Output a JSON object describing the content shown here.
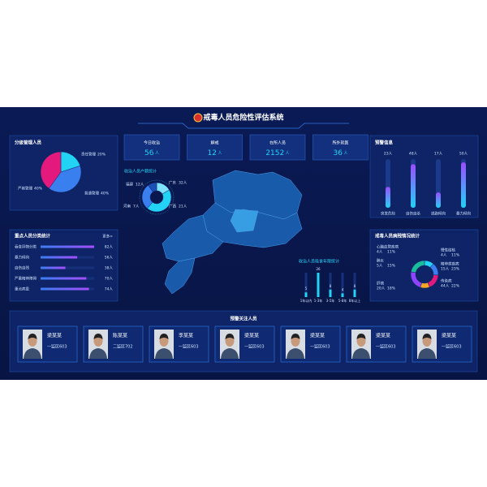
{
  "header": {
    "title": "戒毒人员危险性评估系统"
  },
  "grade_panel": {
    "title": "分级管理人员",
    "categories": [
      "责任管理",
      "普通管理",
      "严格管理"
    ],
    "values": [
      20,
      40,
      40
    ],
    "value_labels": [
      "20%",
      "40%",
      "40%"
    ],
    "colors": [
      "#22d3f5",
      "#3a7ff0",
      "#e3197e"
    ]
  },
  "key_panel": {
    "title": "重点人员分类统计",
    "more": "更多>",
    "categories": [
      "吞食异物分类",
      "暴力倾向",
      "自伤自残",
      "严重精神障碍",
      "重点病患"
    ],
    "values": [
      82,
      56,
      38,
      70,
      74
    ],
    "value_labels": [
      "82人",
      "56人",
      "38人",
      "70人",
      "74人"
    ]
  },
  "stats": [
    {
      "label": "今日收治",
      "value": 56,
      "unit": "人"
    },
    {
      "label": "解戒",
      "value": 12,
      "unit": "人"
    },
    {
      "label": "在所人员",
      "value": 2152,
      "unit": "人"
    },
    {
      "label": "所外就医",
      "value": 36,
      "unit": "人"
    }
  ],
  "origin_chart": {
    "title": "收治人员户籍统计",
    "categories": [
      "福建",
      "广东",
      "广西",
      "河南"
    ],
    "values": [
      12,
      32,
      21,
      7
    ],
    "value_labels": [
      "12人",
      "32人",
      "21人",
      "7人"
    ],
    "colors": [
      "#7fe3ff",
      "#22d3f5",
      "#3a7ff0",
      "#1c4fb8"
    ]
  },
  "duration_chart": {
    "title": "收治人员吸食年限统计",
    "categories": [
      "1年以内",
      "1-3年",
      "3-5年",
      "5-8年",
      "8年以上"
    ],
    "values": [
      5,
      26,
      8,
      4,
      8
    ]
  },
  "warning_panel": {
    "title": "预警信息",
    "categories": [
      "突发危险",
      "自伤自杀",
      "逃跑倾向",
      "暴力倾向"
    ],
    "values": [
      23,
      48,
      17,
      50
    ],
    "value_labels": [
      "23人",
      "48人",
      "17人",
      "50人"
    ]
  },
  "disease_panel": {
    "title": "戒毒人员病残情况统计",
    "colors": [
      "#22d3f5",
      "#3a7ff0",
      "#e3197e",
      "#f5a623",
      "#8e44ff",
      "#1abc9c"
    ],
    "items": [
      {
        "name": "心脑血管疾病",
        "count": "4人",
        "percent": 11,
        "percent_label": "11%"
      },
      {
        "name": "肺炎",
        "count": "5人",
        "percent": 15,
        "percent_label": "15%"
      },
      {
        "name": "肝病",
        "count": "20人",
        "percent": 18,
        "percent_label": "18%"
      },
      {
        "name": "慢性结核",
        "count": "4人",
        "percent": 11,
        "percent_label": "11%"
      },
      {
        "name": "精神类疾病",
        "count": "15人",
        "percent": 23,
        "percent_label": "23%"
      },
      {
        "name": "传染病",
        "count": "44人",
        "percent": 22,
        "percent_label": "22%"
      }
    ]
  },
  "focus_panel": {
    "title": "预警关注人员",
    "people": [
      {
        "name": "梁某某",
        "unit": "一监区603"
      },
      {
        "name": "陈某某",
        "unit": "二监区702"
      },
      {
        "name": "李某某",
        "unit": "一监区603"
      },
      {
        "name": "梁某某",
        "unit": "一监区603"
      },
      {
        "name": "梁某某",
        "unit": "一监区603"
      },
      {
        "name": "梁某某",
        "unit": "一监区603"
      },
      {
        "name": "梁某某",
        "unit": "一监区603"
      }
    ]
  }
}
